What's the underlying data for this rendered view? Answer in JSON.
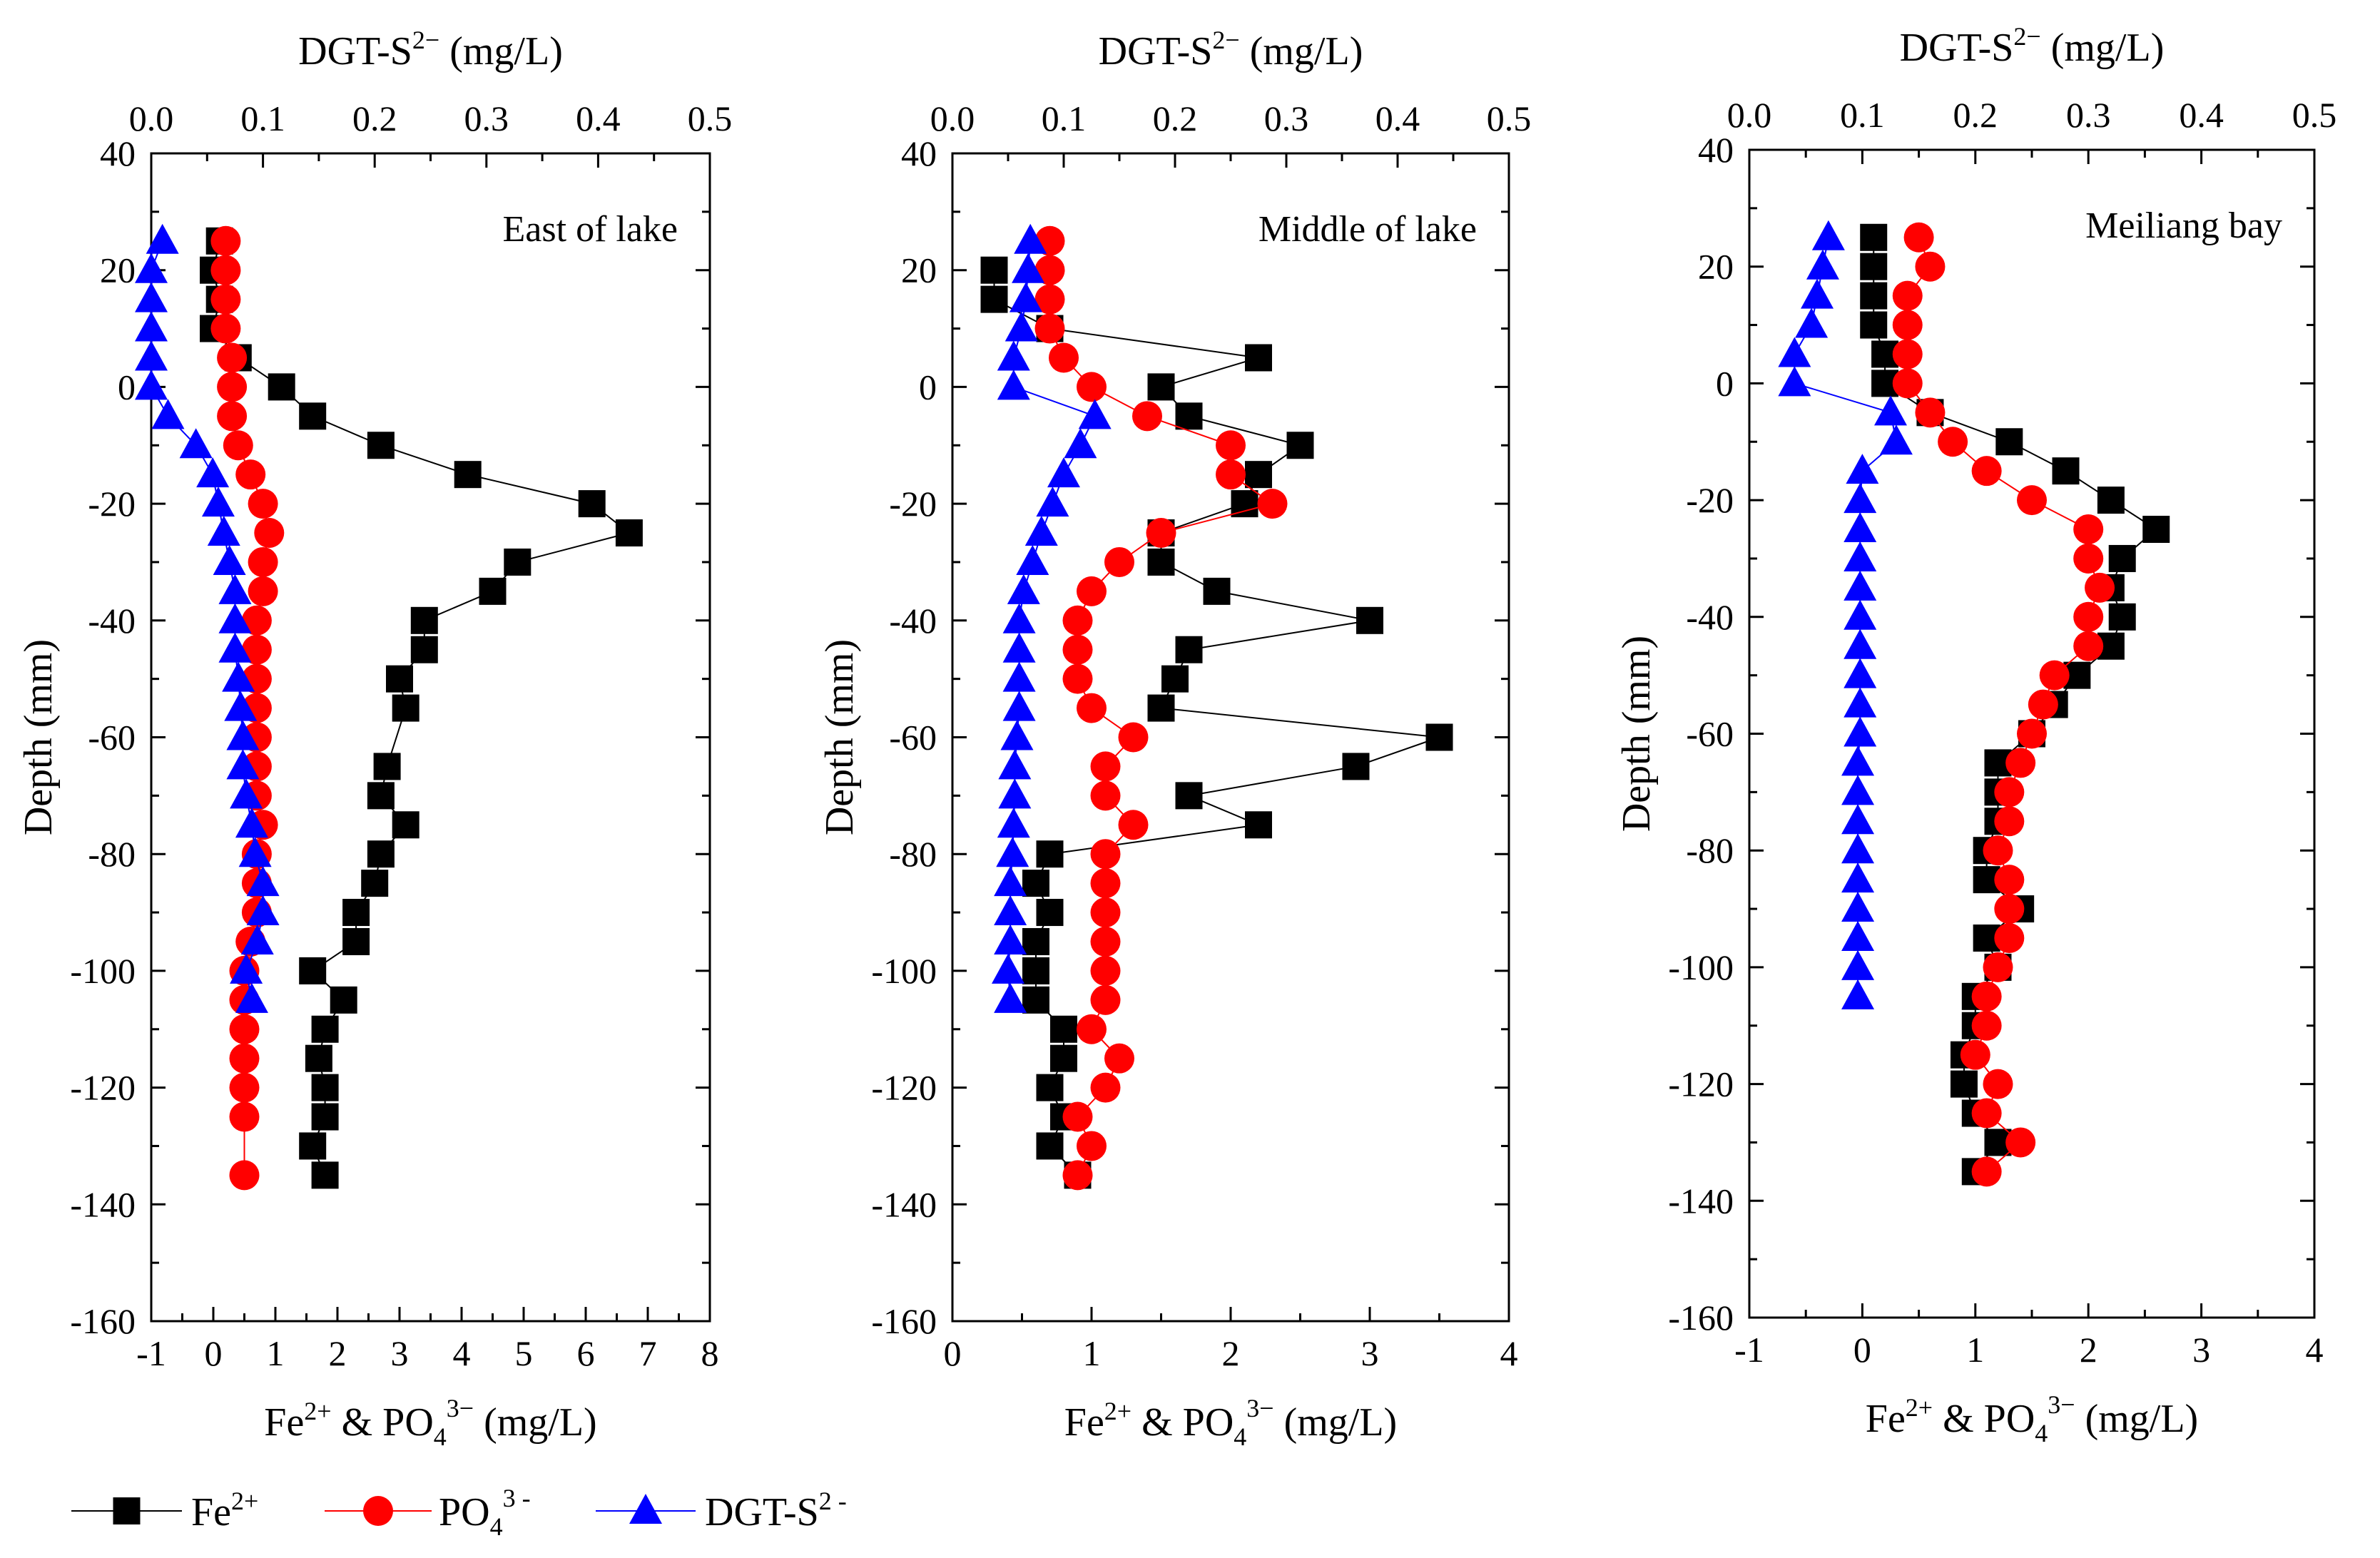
{
  "colors": {
    "fe": "#000000",
    "po4": "#ff0000",
    "s": "#0000ff"
  },
  "legend": {
    "fe_label": "Fe",
    "fe_sup": "2+",
    "po4_label": "PO",
    "po4_sub": "4",
    "po4_sup": "3 -",
    "s_label": "DGT-S",
    "s_sup": "2 -"
  },
  "axis_labels": {
    "top_main": "DGT-S",
    "top_sup": "2−",
    "top_unit": " (mg/L)",
    "bottom_a": "Fe",
    "bottom_sup1": "2+",
    "bottom_b": " & PO",
    "bottom_sub": "4",
    "bottom_sup2": "3−",
    "bottom_unit": " (mg/L)",
    "y": "Depth (mm)"
  },
  "chart_data": [
    {
      "type": "scatter",
      "title": "East of lake",
      "bottom_xlim": [
        -1,
        8
      ],
      "bottom_ticks": [
        -1,
        0,
        1,
        2,
        3,
        4,
        5,
        6,
        7,
        8
      ],
      "top_xlim": [
        0,
        0.5
      ],
      "top_ticks": [
        "0.0",
        "0.1",
        "0.2",
        "0.3",
        "0.4",
        "0.5"
      ],
      "ylim": [
        -160,
        40
      ],
      "y_ticks": [
        40,
        20,
        0,
        -20,
        -40,
        -60,
        -80,
        -100,
        -120,
        -140,
        -160
      ],
      "grid": false,
      "series": [
        {
          "name": "Fe2+",
          "axis": "bottom",
          "connected": true,
          "depth": [
            25,
            20,
            15,
            10,
            5,
            0,
            -5,
            -10,
            -15,
            -20,
            -25,
            -30,
            -35,
            -40,
            -45,
            -50,
            -55,
            -65,
            -70,
            -75,
            -80,
            -85,
            -90,
            -95,
            -100,
            -105,
            -110,
            -115,
            -120,
            -125,
            -130,
            -135
          ],
          "values": [
            0.1,
            0.0,
            0.1,
            0.0,
            0.4,
            1.1,
            1.6,
            2.7,
            4.1,
            6.1,
            6.7,
            4.9,
            4.5,
            3.4,
            3.4,
            3.0,
            3.1,
            2.8,
            2.7,
            3.1,
            2.7,
            2.6,
            2.3,
            2.3,
            1.6,
            2.1,
            1.8,
            1.7,
            1.8,
            1.8,
            1.6,
            1.8
          ]
        },
        {
          "name": "PO43-",
          "axis": "bottom",
          "connected": true,
          "depth": [
            25,
            20,
            15,
            10,
            5,
            0,
            -5,
            -10,
            -15,
            -20,
            -25,
            -30,
            -35,
            -40,
            -45,
            -50,
            -55,
            -60,
            -65,
            -70,
            -75,
            -80,
            -85,
            -90,
            -95,
            -100,
            -105,
            -110,
            -115,
            -120,
            -125,
            -135
          ],
          "values": [
            0.2,
            0.2,
            0.2,
            0.2,
            0.3,
            0.3,
            0.3,
            0.4,
            0.6,
            0.8,
            0.9,
            0.8,
            0.8,
            0.7,
            0.7,
            0.7,
            0.7,
            0.7,
            0.7,
            0.7,
            0.8,
            0.7,
            0.7,
            0.7,
            0.6,
            0.5,
            0.5,
            0.5,
            0.5,
            0.5,
            0.5,
            0.5
          ]
        },
        {
          "name": "DGT-S2-",
          "axis": "top",
          "connected": true,
          "depth": [
            25,
            20,
            15,
            10,
            5,
            0,
            -5,
            -10,
            -15,
            -20,
            -25,
            -30,
            -35,
            -40,
            -45,
            -50,
            -55,
            -60,
            -65,
            -70,
            -75,
            -80,
            -85,
            -90,
            -95,
            -100,
            -105
          ],
          "values": [
            0.01,
            0.0,
            0.0,
            0.0,
            0.0,
            0.0,
            0.015,
            0.04,
            0.055,
            0.06,
            0.065,
            0.07,
            0.075,
            0.075,
            0.075,
            0.078,
            0.08,
            0.082,
            0.082,
            0.085,
            0.09,
            0.093,
            0.1,
            0.1,
            0.095,
            0.085,
            0.09
          ]
        }
      ]
    },
    {
      "type": "scatter",
      "title": "Middle of lake",
      "bottom_xlim": [
        0,
        4
      ],
      "bottom_ticks": [
        0,
        1,
        2,
        3,
        4
      ],
      "top_xlim": [
        0,
        0.5
      ],
      "top_ticks": [
        "0.0",
        "0.1",
        "0.2",
        "0.3",
        "0.4",
        "0.5"
      ],
      "ylim": [
        -160,
        40
      ],
      "y_ticks": [
        40,
        20,
        0,
        -20,
        -40,
        -60,
        -80,
        -100,
        -120,
        -140,
        -160
      ],
      "grid": false,
      "series": [
        {
          "name": "Fe2+",
          "axis": "bottom",
          "connected": true,
          "depth": [
            20,
            15,
            10,
            5,
            0,
            -5,
            -10,
            -15,
            -20,
            -25,
            -30,
            -35,
            -40,
            -45,
            -50,
            -55,
            -60,
            -65,
            -70,
            -75,
            -80,
            -85,
            -90,
            -95,
            -100,
            -105,
            -110,
            -115,
            -120,
            -125,
            -130,
            -135
          ],
          "values": [
            0.3,
            0.3,
            0.7,
            2.2,
            1.5,
            1.7,
            2.5,
            2.2,
            2.1,
            1.5,
            1.5,
            1.9,
            3.0,
            1.7,
            1.6,
            1.5,
            3.5,
            2.9,
            1.7,
            2.2,
            0.7,
            0.6,
            0.7,
            0.6,
            0.6,
            0.6,
            0.8,
            0.8,
            0.7,
            0.8,
            0.7,
            0.9
          ]
        },
        {
          "name": "PO43-",
          "axis": "bottom",
          "connected": true,
          "depth": [
            25,
            20,
            15,
            10,
            5,
            0,
            -5,
            -10,
            -15,
            -20,
            -25,
            -30,
            -35,
            -40,
            -45,
            -50,
            -55,
            -60,
            -65,
            -70,
            -75,
            -80,
            -85,
            -90,
            -95,
            -100,
            -105,
            -110,
            -115,
            -120,
            -125,
            -130,
            -135
          ],
          "values": [
            0.7,
            0.7,
            0.7,
            0.7,
            0.8,
            1.0,
            1.4,
            2.0,
            2.0,
            2.3,
            1.5,
            1.2,
            1.0,
            0.9,
            0.9,
            0.9,
            1.0,
            1.3,
            1.1,
            1.1,
            1.3,
            1.1,
            1.1,
            1.1,
            1.1,
            1.1,
            1.1,
            1.0,
            1.2,
            1.1,
            0.9,
            1.0,
            0.9
          ]
        },
        {
          "name": "DGT-S2-",
          "axis": "top",
          "connected": true,
          "depth": [
            25,
            20,
            15,
            10,
            5,
            0,
            -5,
            -10,
            -15,
            -20,
            -25,
            -30,
            -35,
            -40,
            -45,
            -50,
            -55,
            -60,
            -65,
            -70,
            -75,
            -80,
            -85,
            -90,
            -95,
            -100,
            -105
          ],
          "values": [
            0.07,
            0.068,
            0.066,
            0.062,
            0.055,
            0.055,
            0.128,
            0.115,
            0.1,
            0.09,
            0.08,
            0.072,
            0.064,
            0.06,
            0.06,
            0.06,
            0.06,
            0.058,
            0.056,
            0.056,
            0.055,
            0.054,
            0.052,
            0.052,
            0.052,
            0.05,
            0.052
          ]
        }
      ]
    },
    {
      "type": "scatter",
      "title": "Meiliang bay",
      "bottom_xlim": [
        -1,
        4
      ],
      "bottom_ticks": [
        -1,
        0,
        1,
        2,
        3,
        4
      ],
      "top_xlim": [
        0,
        0.5
      ],
      "top_ticks": [
        "0.0",
        "0.1",
        "0.2",
        "0.3",
        "0.4",
        "0.5"
      ],
      "ylim": [
        -160,
        40
      ],
      "y_ticks": [
        40,
        20,
        0,
        -20,
        -40,
        -60,
        -80,
        -100,
        -120,
        -140,
        -160
      ],
      "grid": false,
      "series": [
        {
          "name": "Fe2+",
          "axis": "bottom",
          "connected": true,
          "depth": [
            25,
            20,
            15,
            10,
            5,
            0,
            -5,
            -10,
            -15,
            -20,
            -25,
            -30,
            -35,
            -40,
            -45,
            -50,
            -55,
            -60,
            -65,
            -70,
            -75,
            -80,
            -85,
            -90,
            -95,
            -100,
            -105,
            -110,
            -115,
            -120,
            -125,
            -130,
            -135
          ],
          "values": [
            0.1,
            0.1,
            0.1,
            0.1,
            0.2,
            0.2,
            0.6,
            1.3,
            1.8,
            2.2,
            2.6,
            2.3,
            2.2,
            2.3,
            2.2,
            1.9,
            1.7,
            1.5,
            1.2,
            1.2,
            1.2,
            1.1,
            1.1,
            1.4,
            1.1,
            1.2,
            1.0,
            1.0,
            0.9,
            0.9,
            1.0,
            1.2,
            1.0
          ]
        },
        {
          "name": "PO43-",
          "axis": "bottom",
          "connected": true,
          "depth": [
            25,
            20,
            15,
            10,
            5,
            0,
            -5,
            -10,
            -15,
            -20,
            -25,
            -30,
            -35,
            -40,
            -45,
            -50,
            -55,
            -60,
            -65,
            -70,
            -75,
            -80,
            -85,
            -90,
            -95,
            -100,
            -105,
            -110,
            -115,
            -120,
            -125,
            -130,
            -135
          ],
          "values": [
            0.5,
            0.6,
            0.4,
            0.4,
            0.4,
            0.4,
            0.6,
            0.8,
            1.1,
            1.5,
            2.0,
            2.0,
            2.1,
            2.0,
            2.0,
            1.7,
            1.6,
            1.5,
            1.4,
            1.3,
            1.3,
            1.2,
            1.3,
            1.3,
            1.3,
            1.2,
            1.1,
            1.1,
            1.0,
            1.2,
            1.1,
            1.4,
            1.1
          ]
        },
        {
          "name": "DGT-S2-",
          "axis": "top",
          "connected": true,
          "depth": [
            25,
            20,
            15,
            10,
            5,
            0,
            -5,
            -10,
            -15,
            -20,
            -25,
            -30,
            -35,
            -40,
            -45,
            -50,
            -55,
            -60,
            -65,
            -70,
            -75,
            -80,
            -85,
            -90,
            -95,
            -100,
            -105
          ],
          "values": [
            0.07,
            0.065,
            0.06,
            0.055,
            0.04,
            0.04,
            0.125,
            0.13,
            0.1,
            0.098,
            0.098,
            0.098,
            0.098,
            0.098,
            0.098,
            0.098,
            0.098,
            0.098,
            0.096,
            0.096,
            0.096,
            0.096,
            0.096,
            0.096,
            0.096,
            0.096,
            0.096
          ]
        }
      ]
    }
  ]
}
